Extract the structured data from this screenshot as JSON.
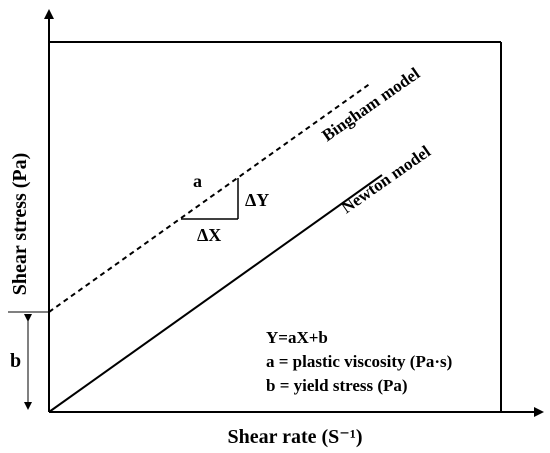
{
  "axes": {
    "x_label": "Shear rate (S⁻¹)",
    "y_label": "Shear stress (Pa)"
  },
  "lines": {
    "bingham": {
      "label": "Bingham model",
      "style": "dashed"
    },
    "newton": {
      "label": "Newton model",
      "style": "solid"
    }
  },
  "slope_triangle": {
    "slope_label": "a",
    "rise_label": "ΔY",
    "run_label": "ΔX"
  },
  "intercept": {
    "label": "b"
  },
  "legend": {
    "equation": "Y=aX+b",
    "a_def": "a = plastic viscosity (Pa·s)",
    "b_def": "b = yield stress (Pa)"
  },
  "colors": {
    "ink": "#000000",
    "background": "#ffffff"
  }
}
